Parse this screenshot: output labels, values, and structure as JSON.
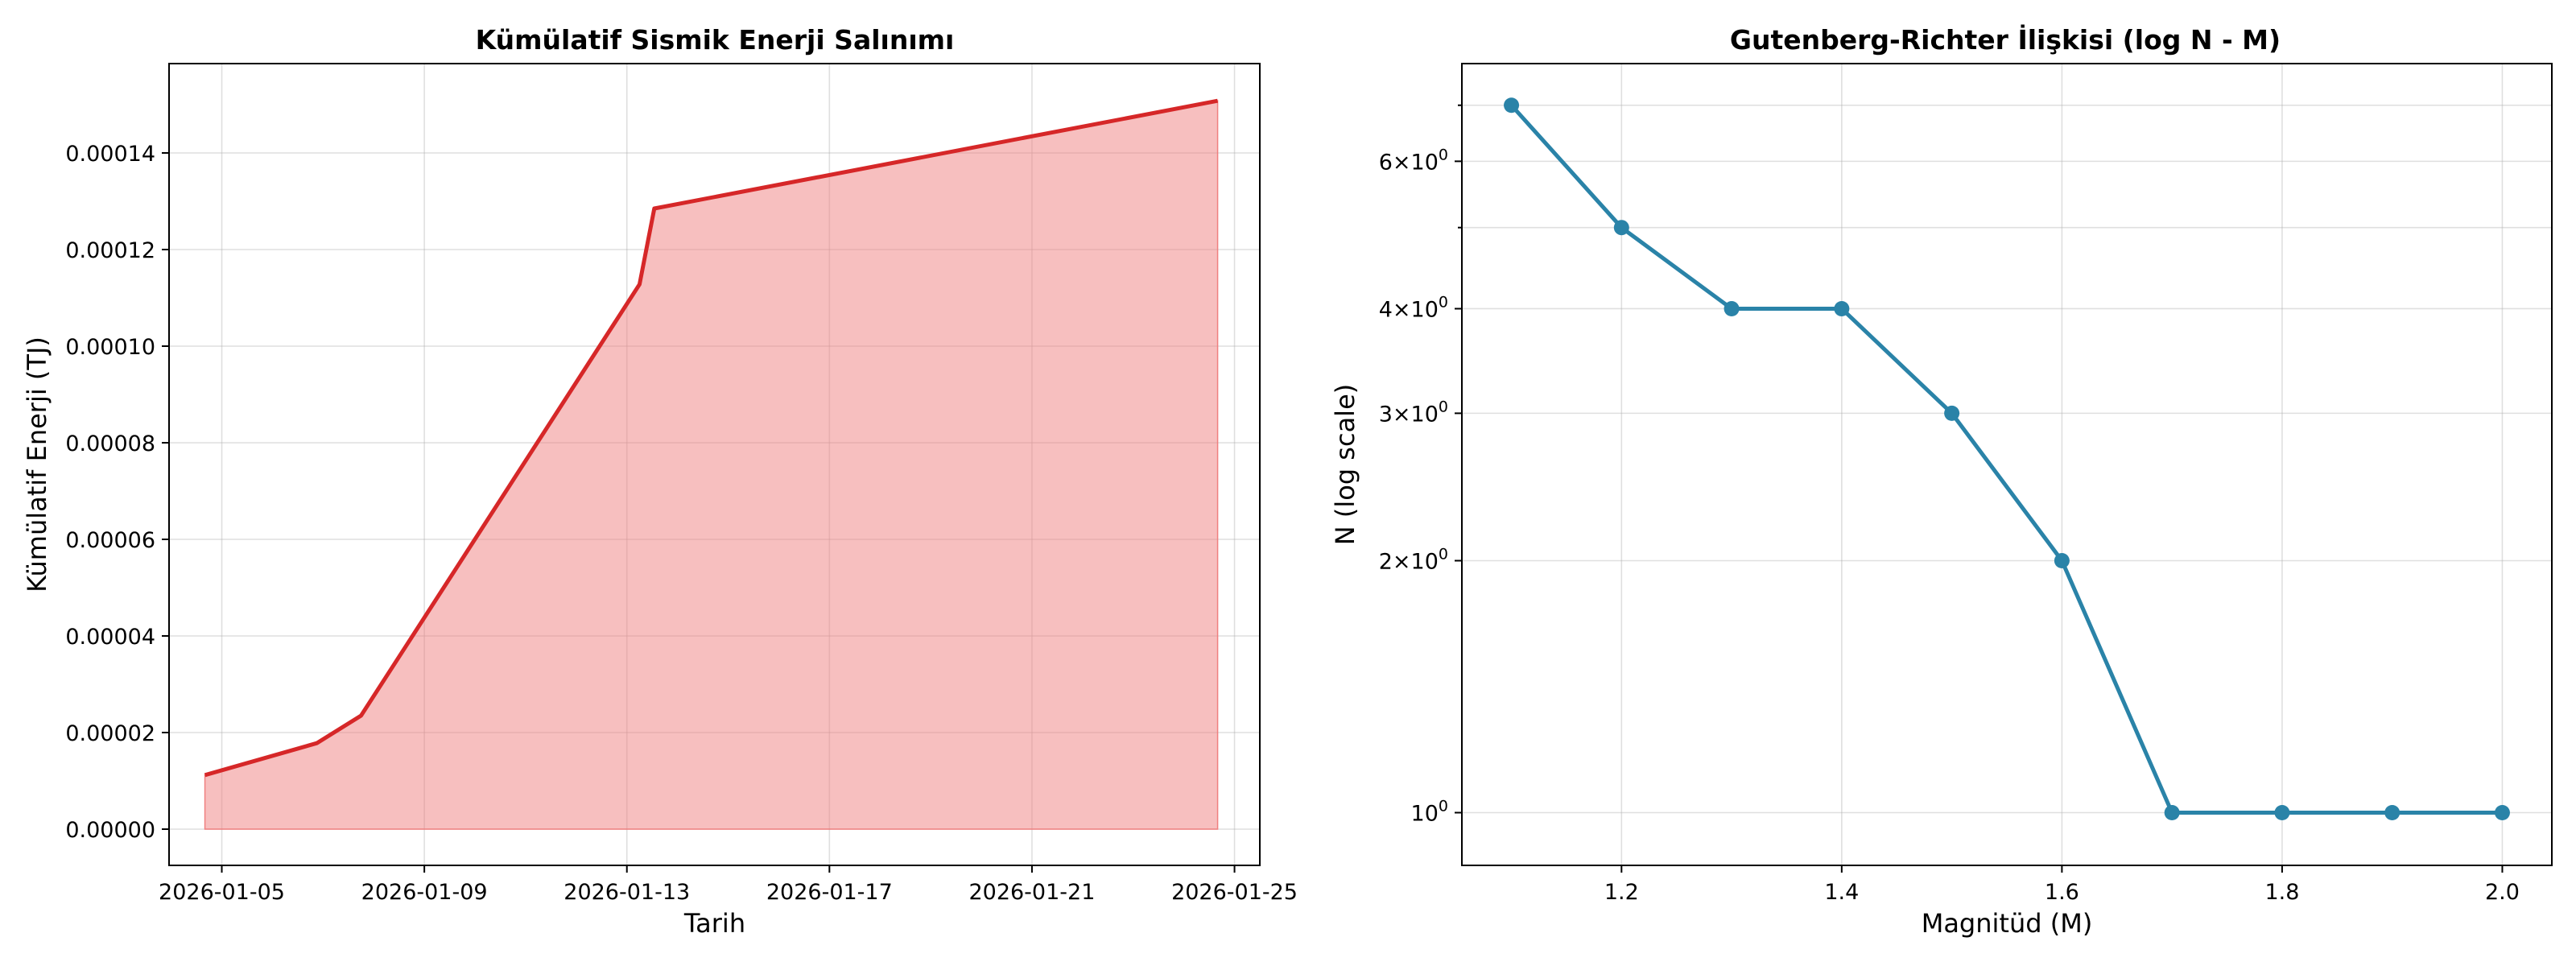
{
  "chart_data": [
    {
      "type": "area",
      "title": "Kümülatif Sismik Enerji Salınımı",
      "xlabel": "Tarih",
      "ylabel": "Kümülatif Enerji (TJ)",
      "x_type": "date",
      "xlim": [
        "2026-01-03T23:00",
        "2026-01-25T12:00"
      ],
      "ylim": [
        -7.5e-06,
        0.0001585
      ],
      "x_ticks": [
        "2026-01-05",
        "2026-01-09",
        "2026-01-13",
        "2026-01-17",
        "2026-01-21",
        "2026-01-25"
      ],
      "y_ticks": [
        0,
        2e-05,
        4e-05,
        6e-05,
        8e-05,
        0.0001,
        0.00012,
        0.00014
      ],
      "y_tick_labels": [
        "0.00000",
        "0.00002",
        "0.00004",
        "0.00006",
        "0.00008",
        "0.00010",
        "0.00012",
        "0.00014"
      ],
      "grid": true,
      "line_color": "#d62728",
      "fill_color": "#f08080",
      "series": [
        {
          "x": [
            "2026-01-04T16:00",
            "2026-01-06T21:00",
            "2026-01-07T18:00",
            "2026-01-13T06:00",
            "2026-01-13T13:00",
            "2026-01-24T16:00"
          ],
          "y": [
            1.12e-05,
            1.78e-05,
            2.35e-05,
            0.0001128,
            0.0001285,
            0.0001508
          ]
        }
      ]
    },
    {
      "type": "line",
      "title": "Gutenberg-Richter İlişkisi (log N - M)",
      "xlabel": "Magnitüd (M)",
      "ylabel": "N (log scale)",
      "y_scale": "log",
      "xlim": [
        1.055,
        2.045
      ],
      "ylim": [
        0.865,
        7.85
      ],
      "x_ticks": [
        1.2,
        1.4,
        1.6,
        1.8,
        2.0
      ],
      "x_tick_labels": [
        "1.2",
        "1.4",
        "1.6",
        "1.8",
        "2.0"
      ],
      "y_ticks": [
        {
          "value": 1,
          "mantissa": "",
          "exp": "0",
          "label": "10⁰"
        },
        {
          "value": 2,
          "mantissa": "2",
          "exp": "0",
          "label": "2×10⁰"
        },
        {
          "value": 3,
          "mantissa": "3",
          "exp": "0",
          "label": "3×10⁰"
        },
        {
          "value": 4,
          "mantissa": "4",
          "exp": "0",
          "label": "4×10⁰"
        },
        {
          "value": 6,
          "mantissa": "6",
          "exp": "0",
          "label": "6×10⁰"
        }
      ],
      "y_minor_ticks": [
        5,
        7
      ],
      "grid": true,
      "line_color": "#2a83a8",
      "series": [
        {
          "x": [
            1.1,
            1.2,
            1.3,
            1.4,
            1.5,
            1.6,
            1.7,
            1.8,
            1.9,
            2.0
          ],
          "y": [
            7,
            5,
            4,
            4,
            3,
            2,
            1,
            1,
            1,
            1
          ]
        }
      ]
    }
  ]
}
